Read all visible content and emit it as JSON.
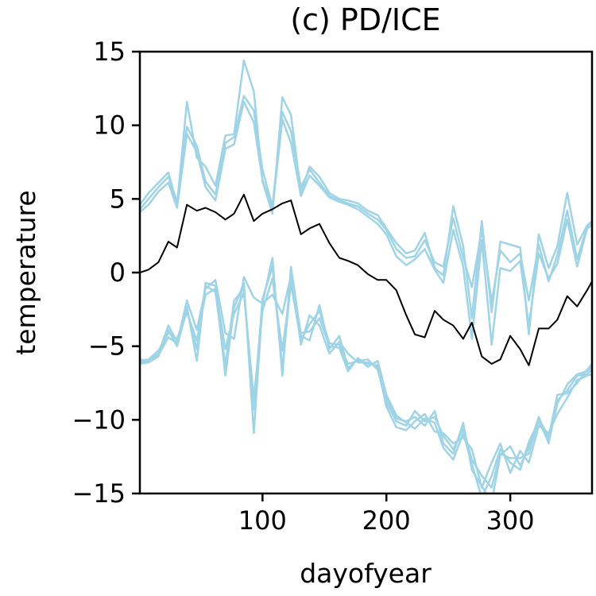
{
  "chart_data": {
    "type": "line",
    "title": "(c) PD/ICE",
    "xlabel": "dayofyear",
    "ylabel": "temperature",
    "xlim": [
      1,
      366
    ],
    "ylim": [
      -15,
      15
    ],
    "grid": false,
    "x_ticks": [
      100,
      200,
      300
    ],
    "x_tick_labels": [
      "100",
      "200",
      "300"
    ],
    "y_ticks": [
      15,
      10,
      5,
      0,
      -5,
      -10,
      -15
    ],
    "y_tick_labels": [
      "15",
      "10",
      "5",
      "0",
      "−5",
      "−10",
      "−15"
    ],
    "colors": {
      "ensemble": "#9fd3e6",
      "mean": "#000000"
    },
    "x": [
      1,
      8,
      16,
      24,
      31,
      39,
      47,
      54,
      62,
      70,
      77,
      85,
      93,
      100,
      108,
      116,
      123,
      131,
      138,
      146,
      154,
      162,
      169,
      177,
      185,
      193,
      200,
      208,
      216,
      223,
      231,
      239,
      246,
      254,
      262,
      269,
      277,
      285,
      292,
      300,
      308,
      315,
      323,
      331,
      338,
      346,
      354,
      362,
      366
    ],
    "series": [
      {
        "role": "mean",
        "values": [
          0.0,
          0.2,
          0.7,
          2.1,
          1.7,
          4.6,
          4.2,
          4.4,
          4.1,
          3.6,
          4.0,
          5.3,
          3.5,
          4.0,
          4.3,
          4.7,
          4.9,
          2.6,
          3.0,
          3.3,
          2.0,
          1.0,
          0.8,
          0.5,
          -0.1,
          -0.5,
          -0.5,
          -1.2,
          -2.9,
          -4.2,
          -4.4,
          -2.6,
          -3.2,
          -3.6,
          -4.5,
          -3.4,
          -5.7,
          -6.2,
          -5.9,
          -4.3,
          -5.2,
          -6.3,
          -3.8,
          -3.8,
          -3.2,
          -1.6,
          -2.3,
          -1.2,
          -0.6
        ]
      },
      {
        "role": "ensemble",
        "values": [
          4.6,
          5.4,
          6.1,
          6.8,
          4.6,
          11.6,
          7.8,
          7.2,
          5.9,
          9.3,
          9.4,
          14.4,
          12.3,
          6.2,
          4.0,
          11.9,
          10.7,
          5.4,
          7.2,
          6.5,
          5.4,
          5.0,
          4.9,
          4.7,
          4.2,
          3.9,
          3.0,
          2.0,
          1.3,
          1.5,
          2.7,
          0.3,
          -0.2,
          4.5,
          1.8,
          -3.1,
          3.5,
          -2.7,
          2.1,
          1.9,
          1.7,
          -4.2,
          2.6,
          0.3,
          1.8,
          5.4,
          1.9,
          3.2,
          3.5
        ]
      },
      {
        "role": "ensemble",
        "values": [
          4.3,
          5.0,
          5.8,
          6.5,
          4.8,
          9.9,
          8.6,
          6.2,
          5.3,
          8.8,
          9.2,
          12.0,
          11.0,
          7.0,
          4.5,
          10.9,
          9.6,
          5.8,
          7.0,
          6.1,
          5.2,
          4.9,
          4.7,
          4.5,
          4.0,
          3.6,
          2.9,
          1.6,
          1.0,
          1.1,
          2.2,
          0.7,
          0.4,
          3.7,
          1.0,
          -1.0,
          2.9,
          -2.0,
          1.5,
          0.7,
          1.3,
          -1.9,
          1.9,
          -0.6,
          1.2,
          4.2,
          0.9,
          3.1,
          3.3
        ]
      },
      {
        "role": "ensemble",
        "values": [
          4.1,
          4.6,
          5.5,
          6.1,
          4.4,
          9.4,
          8.2,
          5.8,
          4.9,
          8.4,
          8.7,
          11.6,
          10.2,
          6.3,
          4.3,
          10.4,
          8.8,
          5.2,
          6.6,
          5.9,
          5.1,
          4.8,
          4.6,
          4.3,
          3.8,
          3.3,
          2.6,
          1.1,
          0.5,
          0.9,
          1.6,
          0.2,
          -0.7,
          2.9,
          0.4,
          -4.5,
          2.2,
          -4.9,
          0.3,
          0.1,
          0.8,
          -3.6,
          1.3,
          -0.4,
          0.6,
          3.6,
          0.4,
          3.0,
          3.2
        ]
      },
      {
        "role": "ensemble",
        "values": [
          -6.1,
          -6.0,
          -5.5,
          -3.6,
          -4.7,
          -2.3,
          -6.0,
          -0.7,
          -0.9,
          -7.0,
          -2.4,
          -0.7,
          -10.9,
          -2.1,
          1.0,
          -7.0,
          0.4,
          -4.3,
          -4.6,
          -2.2,
          -5.2,
          -4.3,
          -6.5,
          -5.9,
          -6.2,
          -6.3,
          -8.5,
          -9.9,
          -10.1,
          -9.8,
          -10.4,
          -9.4,
          -11.6,
          -12.3,
          -10.2,
          -13.4,
          -14.5,
          -15.6,
          -12.4,
          -11.8,
          -13.1,
          -11.9,
          -9.8,
          -11.6,
          -8.7,
          -8.0,
          -7.0,
          -6.9,
          -6.6
        ]
      },
      {
        "role": "ensemble",
        "values": [
          -6.0,
          -5.9,
          -5.3,
          -4.1,
          -4.5,
          -2.7,
          -4.6,
          -1.5,
          -1.1,
          -5.2,
          -2.8,
          -1.4,
          -8.6,
          -2.6,
          -0.4,
          -5.3,
          -0.8,
          -4.6,
          -3.5,
          -2.6,
          -4.8,
          -4.9,
          -6.2,
          -6.0,
          -5.9,
          -6.6,
          -8.8,
          -10.1,
          -10.4,
          -9.4,
          -10.1,
          -9.8,
          -11.1,
          -12.0,
          -10.6,
          -12.7,
          -13.8,
          -14.6,
          -12.3,
          -12.6,
          -12.6,
          -12.3,
          -9.9,
          -11.2,
          -8.3,
          -8.2,
          -7.5,
          -6.6,
          -6.2
        ]
      },
      {
        "role": "ensemble",
        "values": [
          -5.9,
          -6.0,
          -5.6,
          -4.4,
          -4.8,
          -1.9,
          -3.9,
          -1.1,
          -0.5,
          -4.1,
          -4.5,
          -0.3,
          -1.7,
          -2.1,
          -1.5,
          -2.8,
          -0.2,
          -4.9,
          -2.9,
          -3.6,
          -5.5,
          -4.7,
          -5.5,
          -6.1,
          -6.1,
          -6.4,
          -9.1,
          -10.5,
          -10.7,
          -10.1,
          -9.6,
          -10.8,
          -10.9,
          -11.6,
          -11.2,
          -12.0,
          -14.6,
          -12.9,
          -11.6,
          -13.6,
          -12.1,
          -12.9,
          -10.4,
          -10.9,
          -9.6,
          -8.5,
          -7.3,
          -7.0,
          -6.9
        ]
      },
      {
        "role": "ensemble",
        "values": [
          -6.2,
          -6.1,
          -5.7,
          -3.9,
          -5.0,
          -2.5,
          -5.2,
          -0.9,
          -1.3,
          -6.3,
          -1.9,
          -1.1,
          -9.3,
          -1.8,
          0.4,
          -6.5,
          -0.5,
          -4.1,
          -4.0,
          -3.1,
          -5.0,
          -5.1,
          -6.7,
          -5.8,
          -6.4,
          -6.0,
          -8.3,
          -9.7,
          -10.2,
          -10.6,
          -9.9,
          -10.2,
          -11.9,
          -12.7,
          -10.9,
          -13.0,
          -15.3,
          -13.8,
          -12.0,
          -12.9,
          -13.4,
          -11.5,
          -10.1,
          -11.5,
          -8.9,
          -7.6,
          -6.9,
          -6.7,
          -6.4
        ]
      }
    ]
  }
}
